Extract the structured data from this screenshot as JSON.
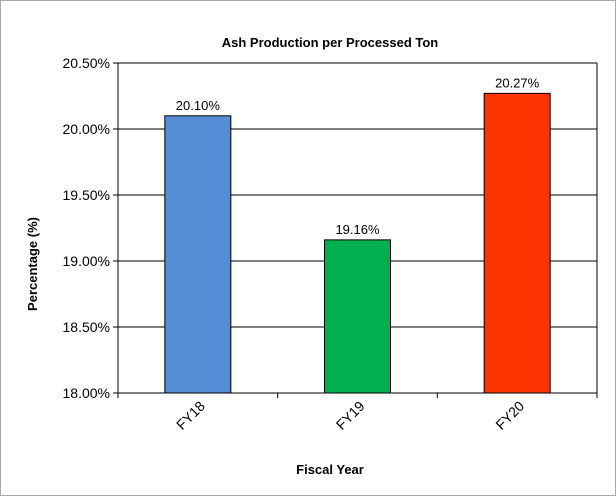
{
  "chart_data": {
    "type": "bar",
    "title": "Ash Production per Processed Ton",
    "xlabel": "Fiscal Year",
    "ylabel": "Percentage (%)",
    "categories": [
      "FY18",
      "FY19",
      "FY20"
    ],
    "values": [
      20.1,
      19.16,
      20.27
    ],
    "data_labels": [
      "20.10%",
      "19.16%",
      "20.27%"
    ],
    "bar_colors": [
      "#548dd4",
      "#00b050",
      "#ff3300"
    ],
    "ylim": [
      18.0,
      20.5
    ],
    "yticks": [
      18.0,
      18.5,
      19.0,
      19.5,
      20.0,
      20.5
    ],
    "ytick_labels": [
      "18.00%",
      "18.50%",
      "19.00%",
      "19.50%",
      "20.00%",
      "20.50%"
    ],
    "grid": true,
    "legend": "none"
  }
}
